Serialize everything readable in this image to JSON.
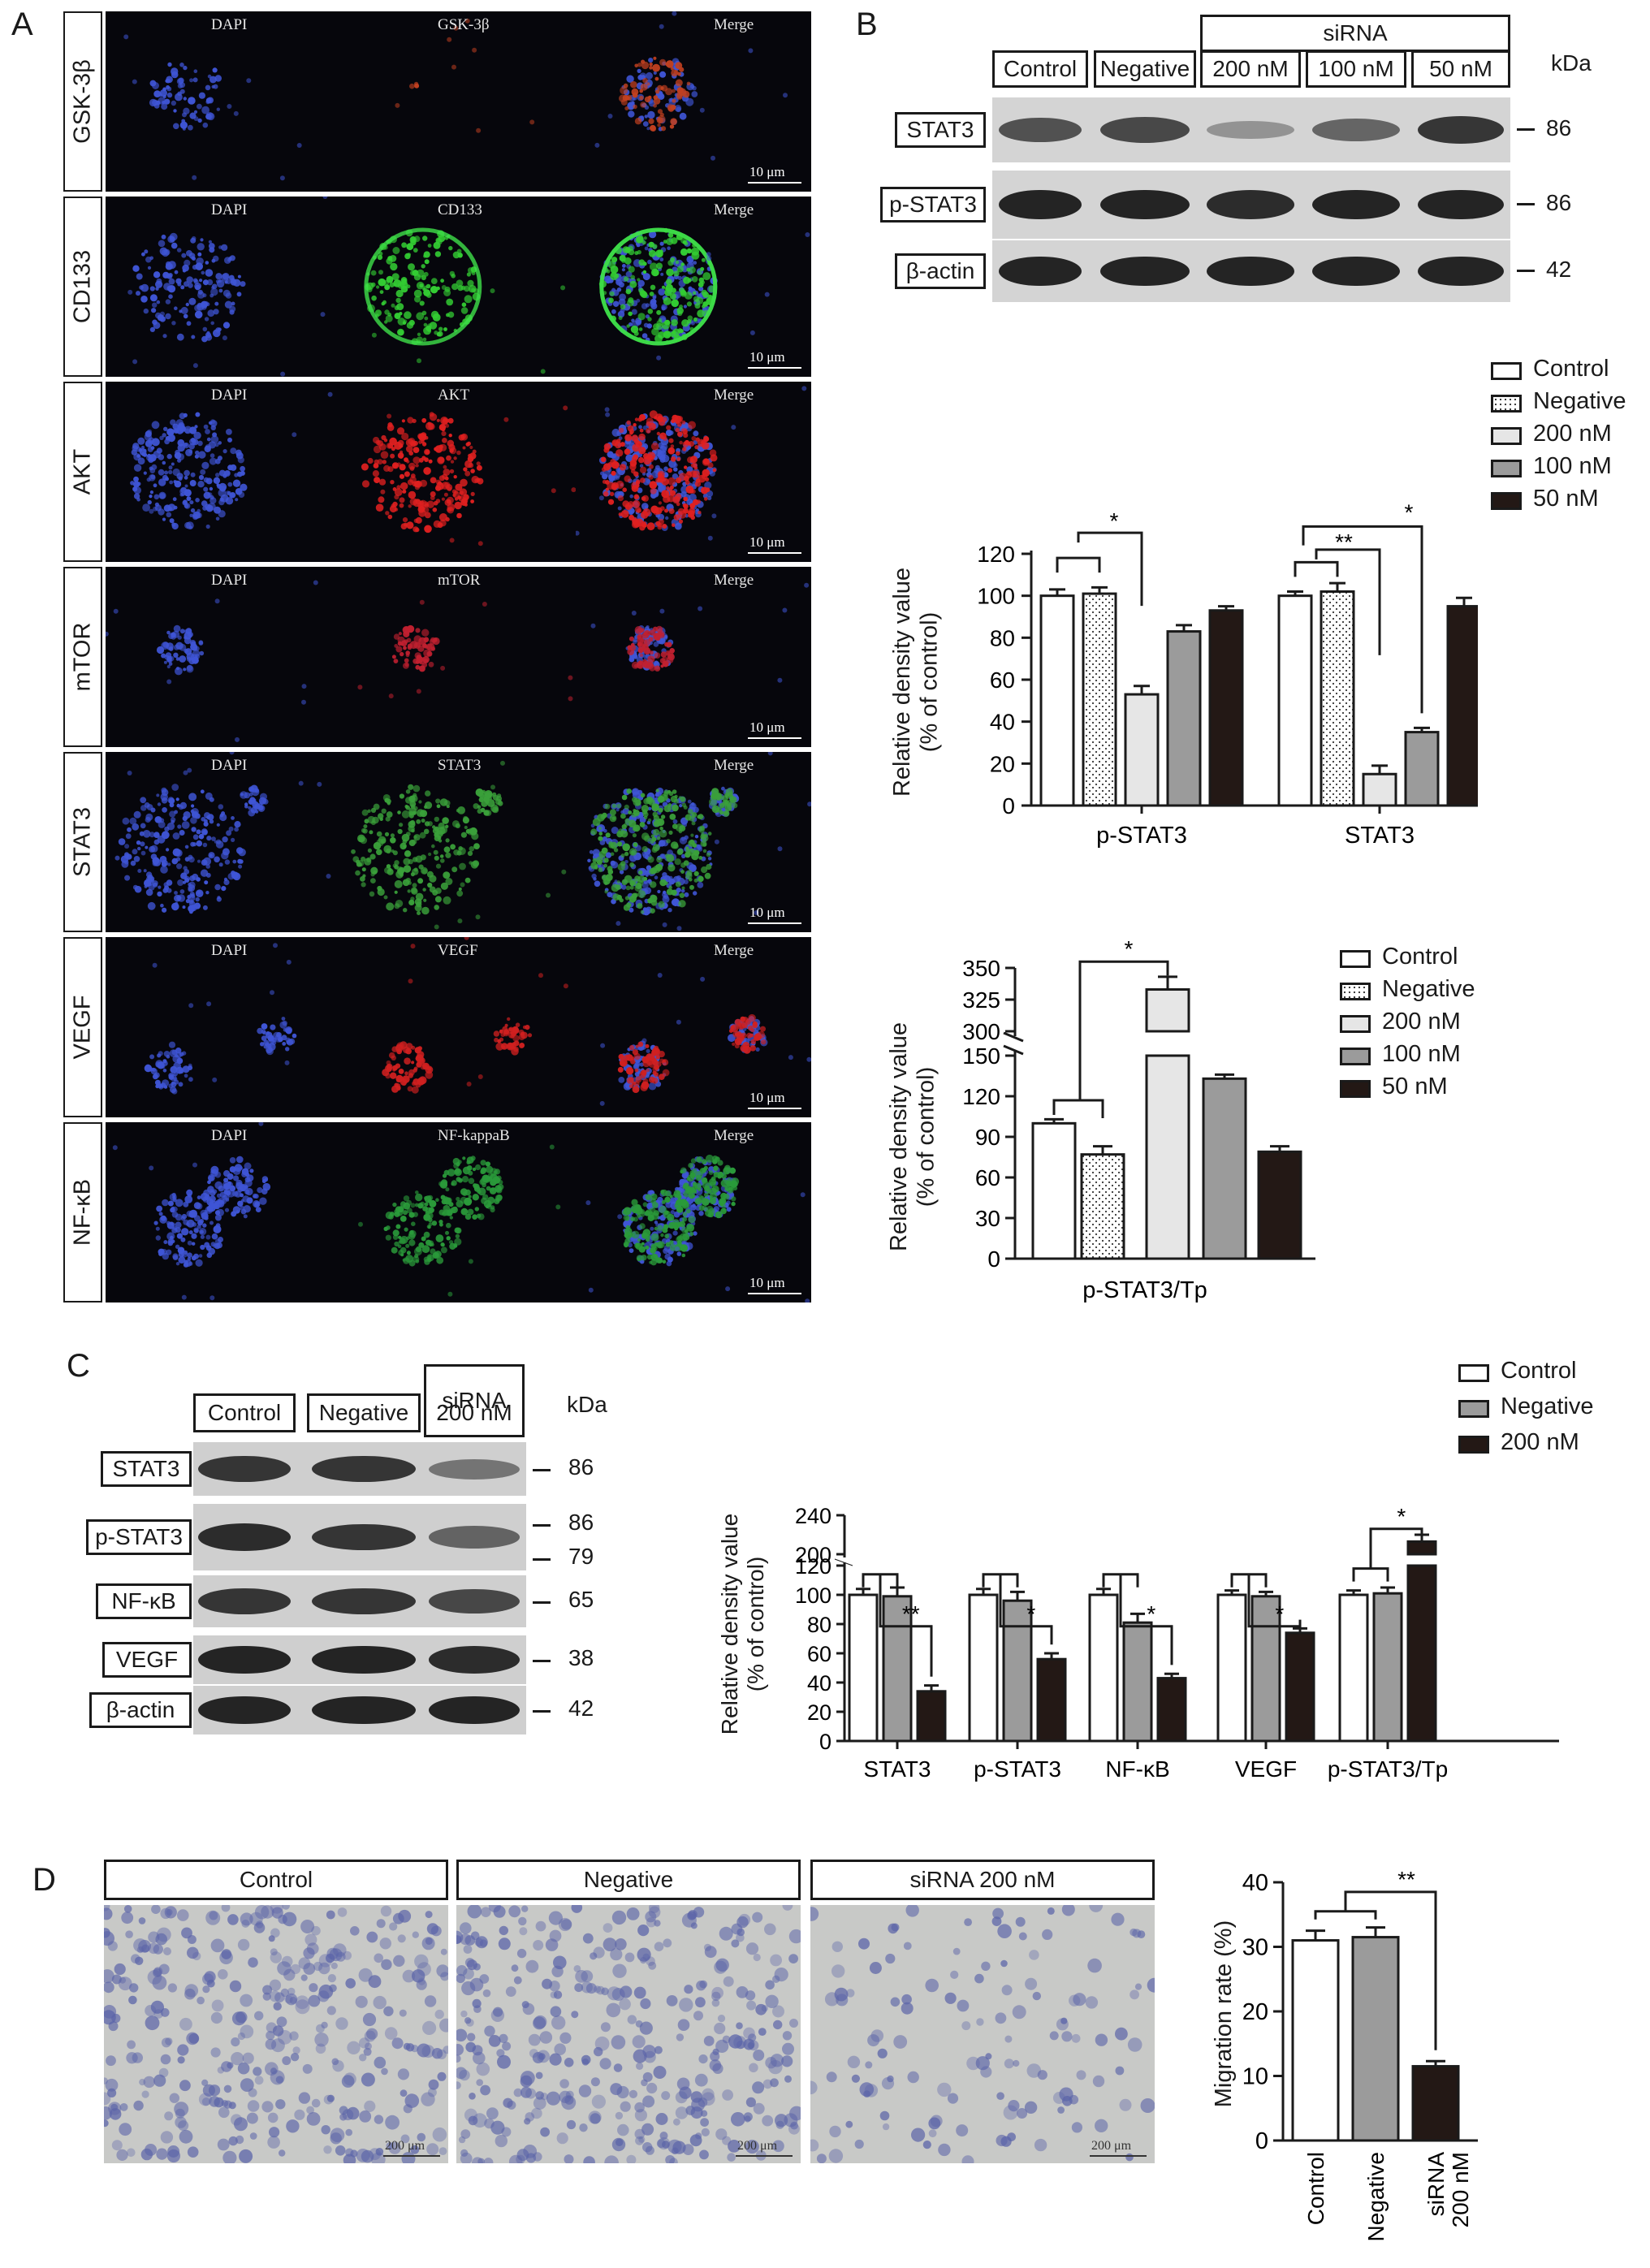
{
  "panels": {
    "a": "A",
    "b": "B",
    "c": "C",
    "d": "D"
  },
  "panel_a": {
    "rows": [
      {
        "label": "GSK-3β",
        "dapi": "DAPI",
        "marker": "GSK-3β",
        "merge": "Merge",
        "scale": "10 μm",
        "color": "#c04020",
        "style": "sparse"
      },
      {
        "label": "CD133",
        "dapi": "DAPI",
        "marker": "CD133",
        "merge": "Merge",
        "scale": "10 μm",
        "color": "#33cc33",
        "style": "ring"
      },
      {
        "label": "AKT",
        "dapi": "DAPI",
        "marker": "AKT",
        "merge": "Merge",
        "scale": "10 μm",
        "color": "#e02020",
        "style": "blob"
      },
      {
        "label": "mTOR",
        "dapi": "DAPI",
        "marker": "mTOR",
        "merge": "Merge",
        "scale": "10 μm",
        "color": "#c02030",
        "style": "small"
      },
      {
        "label": "STAT3",
        "dapi": "DAPI",
        "marker": "STAT3",
        "merge": "Merge",
        "scale": "10 μm",
        "color": "#3aa03a",
        "style": "cluster"
      },
      {
        "label": "VEGF",
        "dapi": "DAPI",
        "marker": "VEGF",
        "merge": "Merge",
        "scale": "10 μm",
        "color": "#d02020",
        "style": "scatter"
      },
      {
        "label": "NF-κB",
        "dapi": "DAPI",
        "marker": "NF-kappaB",
        "merge": "Merge",
        "scale": "10 μm",
        "color": "#2a9a3a",
        "style": "double"
      }
    ]
  },
  "panel_b": {
    "blot": {
      "sirna_header": "siRNA",
      "lanes": [
        "Control",
        "Negative",
        "200 nM",
        "100 nM",
        "50 nM"
      ],
      "kda": "kDa",
      "rows": [
        {
          "label": "STAT3",
          "mw": "86",
          "intensity": [
            0.7,
            0.75,
            0.35,
            0.6,
            0.85
          ]
        },
        {
          "label": "p-STAT3",
          "mw": "86",
          "intensity": [
            0.95,
            0.95,
            0.9,
            0.95,
            0.95
          ]
        },
        {
          "label": "β-actin",
          "mw": "42",
          "intensity": [
            0.95,
            0.95,
            0.95,
            0.95,
            0.95
          ]
        }
      ]
    },
    "chart1_legend": [
      "Control",
      "Negative",
      "200 nM",
      "100 nM",
      "50 nM"
    ],
    "chart2_legend": [
      "Control",
      "Negative",
      "200 nM",
      "100 nM",
      "50 nM"
    ],
    "chart1_sig": {
      "pstat3": "*",
      "stat3_a": "**",
      "stat3_b": "*"
    },
    "chart2_sig": "*"
  },
  "panel_c": {
    "blot": {
      "sirna_header": "siRNA",
      "lanes": [
        "Control",
        "Negative",
        "200 nM"
      ],
      "kda": "kDa",
      "rows": [
        {
          "label": "STAT3",
          "mw": [
            "86"
          ]
        },
        {
          "label": "p-STAT3",
          "mw": [
            "86",
            "79"
          ]
        },
        {
          "label": "NF-κB",
          "mw": [
            "65"
          ]
        },
        {
          "label": "VEGF",
          "mw": [
            "38"
          ]
        },
        {
          "label": "β-actin",
          "mw": [
            "42"
          ]
        }
      ]
    },
    "legend": [
      "Control",
      "Negative",
      "200 nM"
    ],
    "sig": [
      "**",
      "*",
      "*",
      "*",
      "*"
    ]
  },
  "panel_d": {
    "headers": [
      "Control",
      "Negative",
      "siRNA 200 nM"
    ],
    "scale": "200 μm",
    "density": [
      0.85,
      0.85,
      0.3
    ],
    "sig": "**"
  },
  "chart_data": [
    {
      "type": "bar",
      "title": "",
      "categories": [
        "p-STAT3",
        "STAT3"
      ],
      "series": [
        {
          "name": "Control",
          "values": [
            100,
            100
          ],
          "errors": [
            3,
            2
          ],
          "fill": "#ffffff",
          "pattern": "none"
        },
        {
          "name": "Negative",
          "values": [
            101,
            102
          ],
          "errors": [
            3,
            4
          ],
          "fill": "#ffffff",
          "pattern": "dots"
        },
        {
          "name": "200 nM",
          "values": [
            53,
            15
          ],
          "errors": [
            4,
            4
          ],
          "fill": "#e6e6e6",
          "pattern": "none"
        },
        {
          "name": "100 nM",
          "values": [
            83,
            35
          ],
          "errors": [
            3,
            2
          ],
          "fill": "#9b9b9b",
          "pattern": "none"
        },
        {
          "name": "50 nM",
          "values": [
            93,
            95
          ],
          "errors": [
            2,
            4
          ],
          "fill": "#231815",
          "pattern": "none"
        }
      ],
      "xlabel": "",
      "ylabel": "Relative density value\n(% of control)",
      "ylim": [
        0,
        120
      ],
      "yticks": [
        "0",
        "20",
        "40",
        "60",
        "80",
        "100",
        "120"
      ],
      "grid": false,
      "legend_position": "top-right"
    },
    {
      "type": "bar",
      "title": "",
      "categories": [
        "p-STAT3/Tp"
      ],
      "series": [
        {
          "name": "Control",
          "values": [
            100
          ],
          "errors": [
            3
          ],
          "fill": "#ffffff",
          "pattern": "none"
        },
        {
          "name": "Negative",
          "values": [
            77
          ],
          "errors": [
            6
          ],
          "fill": "#ffffff",
          "pattern": "dots"
        },
        {
          "name": "200 nM",
          "values": [
            333
          ],
          "errors": [
            10
          ],
          "fill": "#e6e6e6",
          "pattern": "none"
        },
        {
          "name": "100 nM",
          "values": [
            133
          ],
          "errors": [
            3
          ],
          "fill": "#9b9b9b",
          "pattern": "none"
        },
        {
          "name": "50 nM",
          "values": [
            79
          ],
          "errors": [
            4
          ],
          "fill": "#231815",
          "pattern": "none"
        }
      ],
      "xlabel": "",
      "ylabel": "Relative density value\n(% of control)",
      "axis_break": [
        150,
        300
      ],
      "ylim": [
        0,
        350
      ],
      "yticks": [
        "0",
        "30",
        "60",
        "90",
        "120",
        "150",
        "300",
        "325",
        "350"
      ],
      "grid": false,
      "legend_position": "right"
    },
    {
      "type": "bar",
      "title": "",
      "categories": [
        "STAT3",
        "p-STAT3",
        "NF-κB",
        "VEGF",
        "p-STAT3/Tp"
      ],
      "series": [
        {
          "name": "Control",
          "values": [
            100,
            100,
            100,
            100,
            100
          ],
          "errors": [
            4,
            4,
            4,
            3,
            3
          ],
          "fill": "#ffffff"
        },
        {
          "name": "Negative",
          "values": [
            99,
            96,
            81,
            99,
            101
          ],
          "errors": [
            6,
            6,
            6,
            3,
            4
          ],
          "fill": "#9b9b9b"
        },
        {
          "name": "200 nM",
          "values": [
            34,
            56,
            43,
            74,
            213
          ],
          "errors": [
            4,
            4,
            3,
            3,
            7
          ],
          "fill": "#231815"
        }
      ],
      "xlabel": "",
      "ylabel": "Relative density value\n(% of control)",
      "axis_break": [
        120,
        200
      ],
      "ylim": [
        0,
        240
      ],
      "yticks": [
        "0",
        "20",
        "40",
        "60",
        "80",
        "100",
        "120",
        "200",
        "240"
      ],
      "grid": false,
      "legend_position": "top-right"
    },
    {
      "type": "bar",
      "title": "",
      "categories": [
        "Control",
        "Negative",
        "siRNA\n200 nM"
      ],
      "values": [
        31,
        31.5,
        11.5
      ],
      "errors": [
        1.5,
        1.5,
        0.8
      ],
      "fills": [
        "#ffffff",
        "#9b9b9b",
        "#231815"
      ],
      "xlabel": "",
      "ylabel": "Migration rate (%)",
      "ylim": [
        0,
        40
      ],
      "yticks": [
        "0",
        "10",
        "20",
        "30",
        "40"
      ],
      "grid": false
    }
  ]
}
